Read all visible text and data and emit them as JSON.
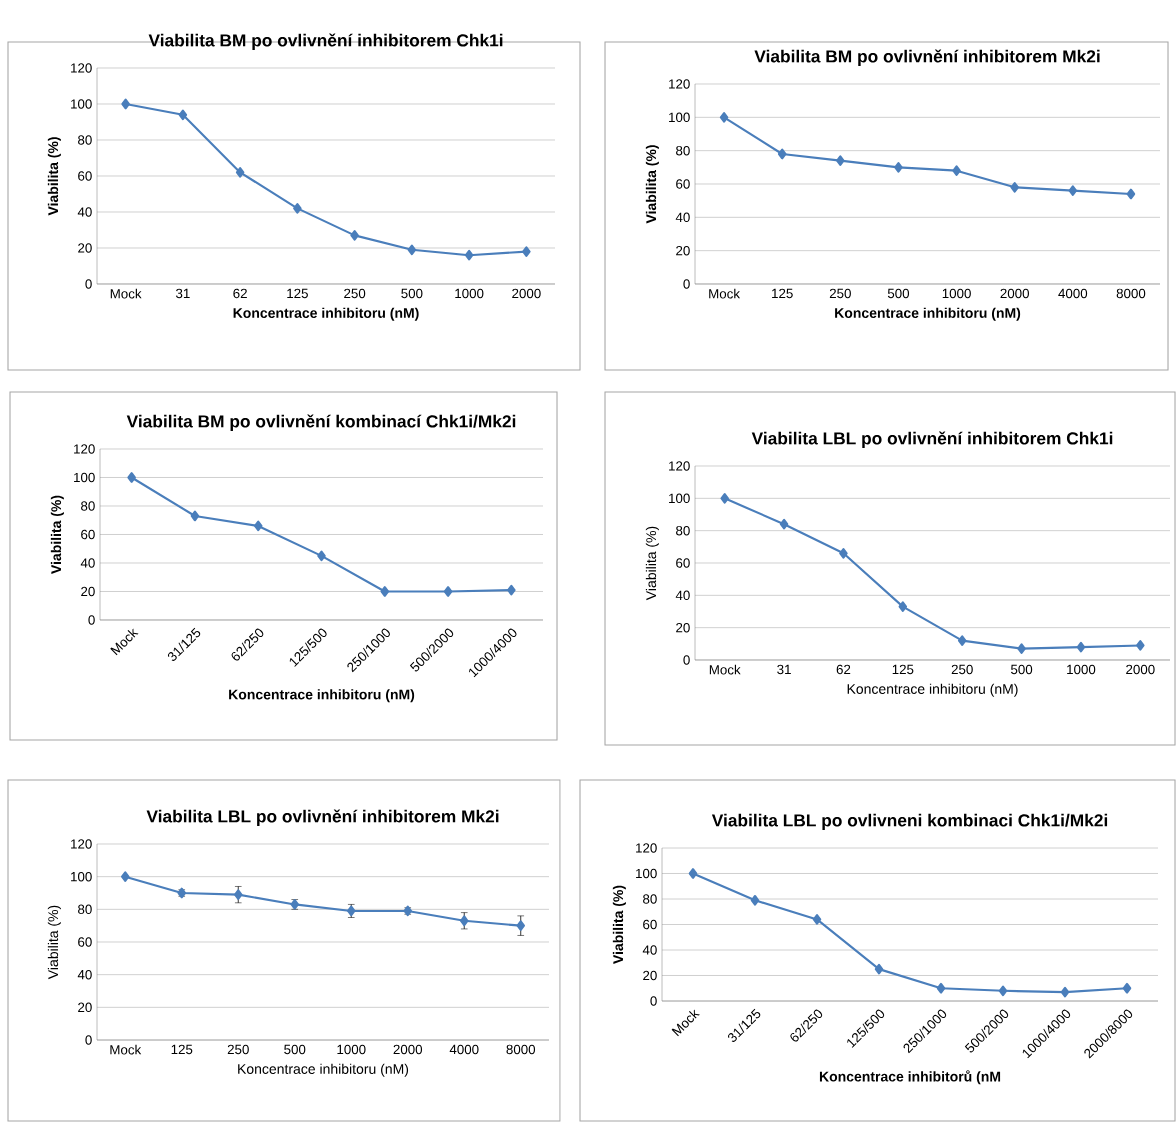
{
  "chart_data": [
    {
      "type": "line",
      "title": "Viabilita BM po ovlivnění inhibitorem Chk1i",
      "xlabel": "Koncentrace inhibitoru (nM)",
      "ylabel": "Viabilita (%)",
      "categories": [
        "Mock",
        "31",
        "62",
        "125",
        "250",
        "500",
        "1000",
        "2000"
      ],
      "values": [
        100,
        94,
        62,
        42,
        27,
        19,
        16,
        18
      ],
      "color": "#4a7ebb",
      "marker": "diamond",
      "ylim": [
        0,
        120
      ],
      "yticks": [
        0,
        20,
        40,
        60,
        80,
        100,
        120
      ],
      "grid": "y"
    },
    {
      "type": "line",
      "title": "Viabilita BM po ovlivnění inhibitorem Mk2i",
      "xlabel": "Koncentrace inhibitoru (nM)",
      "ylabel": "Viabilita (%)",
      "categories": [
        "Mock",
        "125",
        "250",
        "500",
        "1000",
        "2000",
        "4000",
        "8000"
      ],
      "values": [
        100,
        78,
        74,
        70,
        68,
        58,
        56,
        54
      ],
      "color": "#4a7ebb",
      "marker": "diamond",
      "ylim": [
        0,
        120
      ],
      "yticks": [
        0,
        20,
        40,
        60,
        80,
        100,
        120
      ],
      "grid": "y"
    },
    {
      "type": "line",
      "title": "Viabilita BM po ovlivnění kombinací Chk1i/Mk2i",
      "xlabel": "Koncentrace inhibitoru (nM)",
      "ylabel": "Viabilita (%)",
      "categories": [
        "Mock",
        "31/125",
        "62/250",
        "125/500",
        "250/1000",
        "500/2000",
        "1000/4000"
      ],
      "values": [
        100,
        73,
        66,
        45,
        20,
        20,
        21
      ],
      "color": "#4a7ebb",
      "marker": "diamond",
      "ylim": [
        0,
        120
      ],
      "yticks": [
        0,
        20,
        40,
        60,
        80,
        100,
        120
      ],
      "grid": "y"
    },
    {
      "type": "line",
      "title": "Viabilita LBL po ovlivnění inhibitorem Chk1i",
      "xlabel": "Koncentrace inhibitoru (nM)",
      "ylabel": "Viabilita (%)",
      "categories": [
        "Mock",
        "31",
        "62",
        "125",
        "250",
        "500",
        "1000",
        "2000"
      ],
      "values": [
        100,
        84,
        66,
        33,
        12,
        7,
        8,
        9
      ],
      "color": "#4a7ebb",
      "marker": "diamond",
      "ylim": [
        0,
        120
      ],
      "yticks": [
        0,
        20,
        40,
        60,
        80,
        100,
        120
      ],
      "grid": "y"
    },
    {
      "type": "line",
      "title": "Viabilita LBL po ovlivnění inhibitorem Mk2i",
      "xlabel": "Koncentrace inhibitoru (nM)",
      "ylabel": "Viabilita (%)",
      "categories": [
        "Mock",
        "125",
        "250",
        "500",
        "1000",
        "2000",
        "4000",
        "8000"
      ],
      "values": [
        100,
        90,
        89,
        83,
        79,
        79,
        73,
        70
      ],
      "errors": [
        null,
        2,
        5,
        3,
        4,
        2,
        5,
        6
      ],
      "color": "#4a7ebb",
      "marker": "diamond",
      "ylim": [
        0,
        120
      ],
      "yticks": [
        0,
        20,
        40,
        60,
        80,
        100,
        120
      ],
      "grid": "y"
    },
    {
      "type": "line",
      "title": "Viabilita LBL po ovlivneni kombinaci Chk1i/Mk2i",
      "xlabel": "Koncentrace inhibitorů (nM",
      "ylabel": "Viabilita (%)",
      "categories": [
        "Mock",
        "31/125",
        "62/250",
        "125/500",
        "250/1000",
        "500/2000",
        "1000/4000",
        "2000/8000"
      ],
      "values": [
        100,
        79,
        64,
        25,
        10,
        8,
        7,
        10
      ],
      "color": "#4a7ebb",
      "marker": "diamond",
      "ylim": [
        0,
        120
      ],
      "yticks": [
        0,
        20,
        40,
        60,
        80,
        100,
        120
      ],
      "grid": "y"
    }
  ]
}
